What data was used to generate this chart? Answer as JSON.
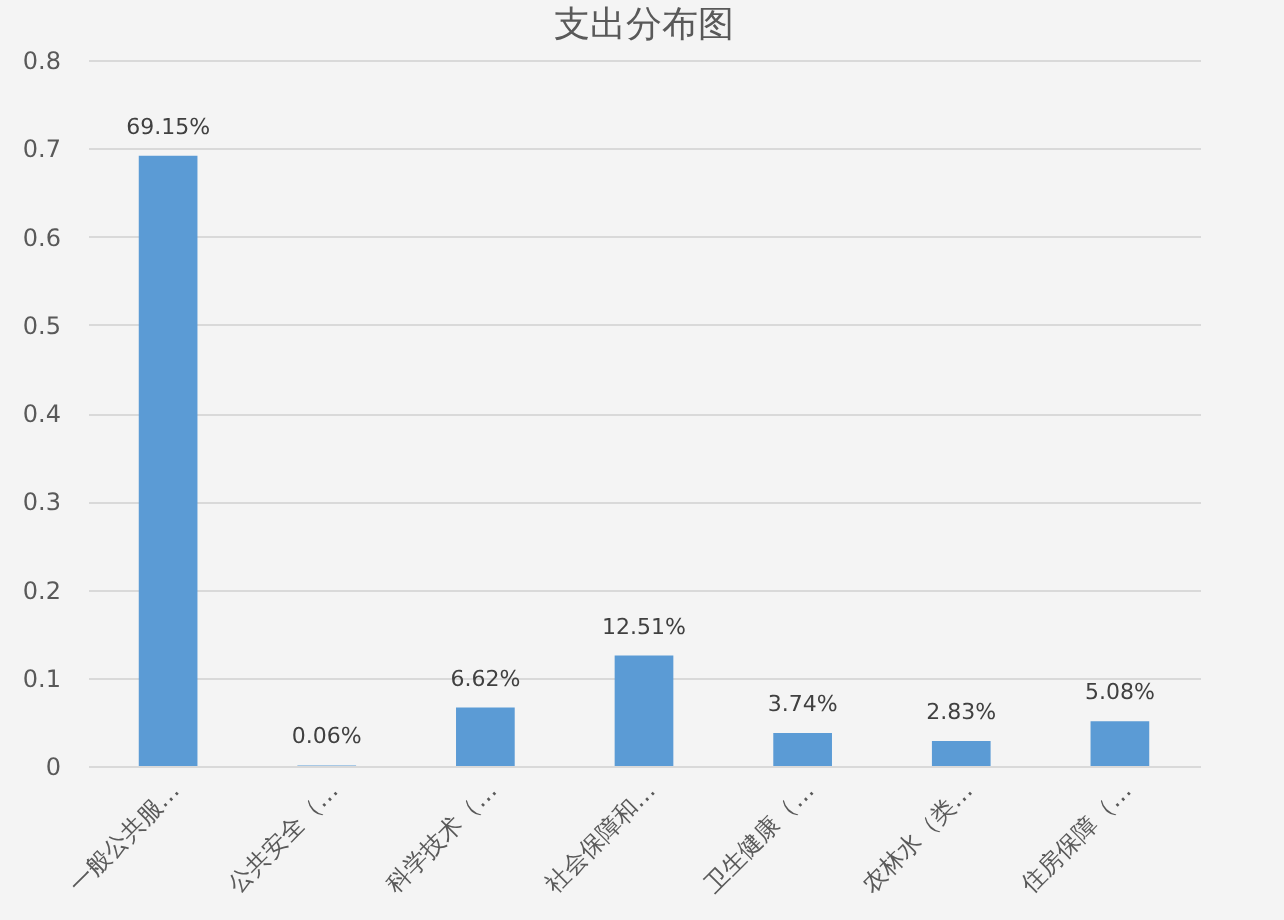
{
  "chart_data": {
    "type": "bar",
    "title": "支出分布图",
    "categories": [
      "一般公共服…",
      "公共安全（…",
      "科学技术（…",
      "社会保障和…",
      "卫生健康（…",
      "农林水（类…",
      "住房保障（…"
    ],
    "values": [
      0.6915,
      0.0006,
      0.0662,
      0.1251,
      0.0374,
      0.0283,
      0.0508
    ],
    "value_labels": [
      "69.15%",
      "0.06%",
      "6.62%",
      "12.51%",
      "3.74%",
      "2.83%",
      "5.08%"
    ],
    "color": "#5b9bd5",
    "ylim": [
      0,
      0.8
    ],
    "yticks": [
      0,
      0.1,
      0.2,
      0.3,
      0.4,
      0.5,
      0.6,
      0.7,
      0.8
    ],
    "grid": "y"
  }
}
